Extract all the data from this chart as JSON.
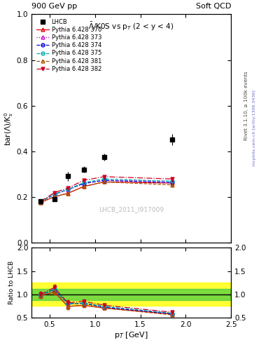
{
  "title_top": "900 GeV pp",
  "title_right": "Soft QCD",
  "plot_title": "$\\bar{\\Lambda}$/K0S vs p$_T$ (2 < y < 4)",
  "watermark": "LHCB_2011_I917009",
  "rivet_label": "Rivet 3.1.10, ≥ 100k events",
  "mcplots_label": "mcplots.cern.ch [arXiv:1306.3436]",
  "xlabel": "p$_T$ [GeV]",
  "ylabel_main": "bar($\\Lambda$)/K$^0_s$",
  "ylabel_ratio": "Ratio to LHCB",
  "xlim": [
    0.3,
    2.5
  ],
  "ylim_main": [
    0.0,
    1.0
  ],
  "ylim_ratio": [
    0.5,
    2.0
  ],
  "lhcb_x": [
    0.4,
    0.55,
    0.7,
    0.875,
    1.1,
    1.85
  ],
  "lhcb_y": [
    0.18,
    0.19,
    0.29,
    0.32,
    0.375,
    0.45
  ],
  "lhcb_yerr": [
    0.01,
    0.01,
    0.02,
    0.015,
    0.015,
    0.025
  ],
  "pythia_x": [
    0.4,
    0.55,
    0.7,
    0.875,
    1.1,
    1.85
  ],
  "series": [
    {
      "label": "Pythia 6.428 370",
      "color": "#e8000b",
      "linestyle": "-",
      "marker": "^",
      "markerfacecolor": "none",
      "y": [
        0.175,
        0.2,
        0.215,
        0.245,
        0.265,
        0.26
      ],
      "yerr": [
        0.003,
        0.003,
        0.003,
        0.003,
        0.004,
        0.005
      ]
    },
    {
      "label": "Pythia 6.428 373",
      "color": "#cc00cc",
      "linestyle": ":",
      "marker": "^",
      "markerfacecolor": "none",
      "y": [
        0.178,
        0.21,
        0.23,
        0.258,
        0.272,
        0.268
      ],
      "yerr": [
        0.003,
        0.003,
        0.003,
        0.003,
        0.004,
        0.005
      ]
    },
    {
      "label": "Pythia 6.428 374",
      "color": "#0000dd",
      "linestyle": "--",
      "marker": "o",
      "markerfacecolor": "none",
      "y": [
        0.178,
        0.21,
        0.232,
        0.258,
        0.272,
        0.262
      ],
      "yerr": [
        0.003,
        0.003,
        0.003,
        0.003,
        0.004,
        0.005
      ]
    },
    {
      "label": "Pythia 6.428 375",
      "color": "#00aaaa",
      "linestyle": "--",
      "marker": "o",
      "markerfacecolor": "none",
      "y": [
        0.178,
        0.212,
        0.232,
        0.262,
        0.278,
        0.268
      ],
      "yerr": [
        0.003,
        0.003,
        0.003,
        0.003,
        0.004,
        0.005
      ]
    },
    {
      "label": "Pythia 6.428 381",
      "color": "#aa5500",
      "linestyle": "--",
      "marker": "^",
      "markerfacecolor": "none",
      "y": [
        0.175,
        0.2,
        0.215,
        0.245,
        0.265,
        0.252
      ],
      "yerr": [
        0.003,
        0.003,
        0.003,
        0.003,
        0.004,
        0.005
      ]
    },
    {
      "label": "Pythia 6.428 382",
      "color": "#cc0022",
      "linestyle": "-.",
      "marker": "v",
      "markerfacecolor": "#cc0022",
      "y": [
        0.18,
        0.218,
        0.238,
        0.272,
        0.288,
        0.278
      ],
      "yerr": [
        0.003,
        0.003,
        0.003,
        0.004,
        0.004,
        0.005
      ]
    }
  ],
  "band_yellow": [
    0.75,
    1.25
  ],
  "band_green": [
    0.875,
    1.125
  ]
}
